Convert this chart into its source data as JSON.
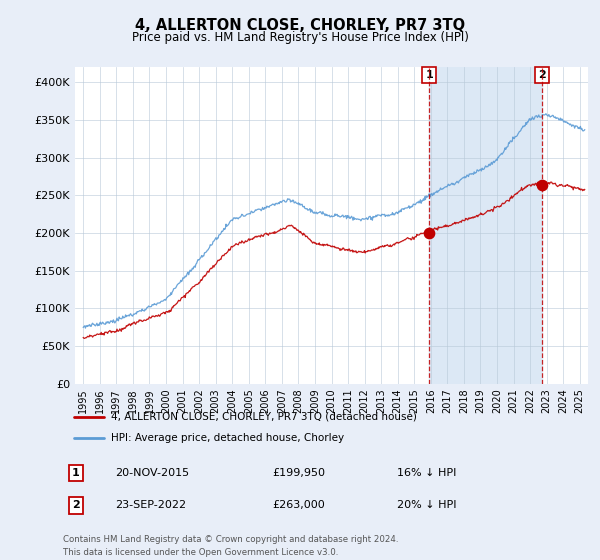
{
  "title": "4, ALLERTON CLOSE, CHORLEY, PR7 3TQ",
  "subtitle": "Price paid vs. HM Land Registry's House Price Index (HPI)",
  "ylim": [
    0,
    420000
  ],
  "yticks": [
    0,
    50000,
    100000,
    150000,
    200000,
    250000,
    300000,
    350000,
    400000
  ],
  "ytick_labels": [
    "£0",
    "£50K",
    "£100K",
    "£150K",
    "£200K",
    "£250K",
    "£300K",
    "£350K",
    "£400K"
  ],
  "hpi_color": "#5b9bd5",
  "price_color": "#c00000",
  "sale1_price": 199950,
  "sale1_date": "20-NOV-2015",
  "sale1_label": "16% ↓ HPI",
  "sale2_price": 263000,
  "sale2_date": "23-SEP-2022",
  "sale2_label": "20% ↓ HPI",
  "sale1_x": 2015.9,
  "sale2_x": 2022.72,
  "xmin": 1994.5,
  "xmax": 2025.5,
  "legend_label1": "4, ALLERTON CLOSE, CHORLEY, PR7 3TQ (detached house)",
  "legend_label2": "HPI: Average price, detached house, Chorley",
  "footer1": "Contains HM Land Registry data © Crown copyright and database right 2024.",
  "footer2": "This data is licensed under the Open Government Licence v3.0.",
  "background_color": "#e8eef8",
  "plot_bg_color": "#ffffff",
  "shade_color": "#dce8f5"
}
